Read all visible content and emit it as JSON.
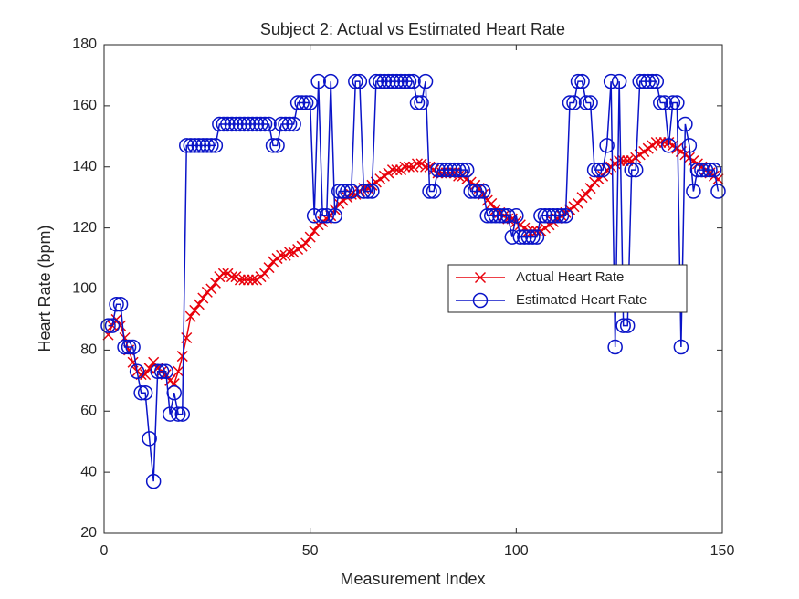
{
  "chart_data": {
    "type": "line",
    "title": "Subject 2: Actual vs Estimated Heart Rate",
    "xlabel": "Measurement Index",
    "ylabel": "Heart Rate (bpm)",
    "x": [
      1,
      2,
      3,
      4,
      5,
      6,
      7,
      8,
      9,
      10,
      11,
      12,
      13,
      14,
      15,
      16,
      17,
      18,
      19,
      20,
      21,
      22,
      23,
      24,
      25,
      26,
      27,
      28,
      29,
      30,
      31,
      32,
      33,
      34,
      35,
      36,
      37,
      38,
      39,
      40,
      41,
      42,
      43,
      44,
      45,
      46,
      47,
      48,
      49,
      50,
      51,
      52,
      53,
      54,
      55,
      56,
      57,
      58,
      59,
      60,
      61,
      62,
      63,
      64,
      65,
      66,
      67,
      68,
      69,
      70,
      71,
      72,
      73,
      74,
      75,
      76,
      77,
      78,
      79,
      80,
      81,
      82,
      83,
      84,
      85,
      86,
      87,
      88,
      89,
      90,
      91,
      92,
      93,
      94,
      95,
      96,
      97,
      98,
      99,
      100,
      101,
      102,
      103,
      104,
      105,
      106,
      107,
      108,
      109,
      110,
      111,
      112,
      113,
      114,
      115,
      116,
      117,
      118,
      119,
      120,
      121,
      122,
      123,
      124,
      125,
      126,
      127,
      128,
      129,
      130,
      131,
      132,
      133,
      134,
      135,
      136,
      137,
      138,
      139,
      140,
      141,
      142,
      143,
      144,
      145,
      146,
      147,
      148,
      149
    ],
    "series": [
      {
        "name": "Actual Heart Rate",
        "color": "#e8000b",
        "marker": "x",
        "values": [
          85,
          88,
          90,
          88,
          84,
          80,
          76,
          73,
          72,
          72,
          74,
          76,
          74,
          73,
          72,
          70,
          69,
          73,
          78,
          84,
          91,
          93,
          95,
          97,
          99,
          100,
          102,
          104,
          105,
          105,
          104,
          104,
          103,
          103,
          103,
          103,
          103,
          104,
          105,
          107,
          109,
          110,
          111,
          111,
          112,
          112,
          113,
          114,
          115,
          117,
          119,
          121,
          122,
          123,
          124,
          126,
          128,
          129,
          130,
          131,
          131,
          132,
          133,
          133,
          134,
          135,
          136,
          137,
          138,
          139,
          139,
          139,
          140,
          140,
          140,
          141,
          141,
          140,
          140,
          139,
          138,
          138,
          138,
          138,
          138,
          137,
          137,
          136,
          135,
          134,
          133,
          131,
          129,
          128,
          126,
          125,
          124,
          123,
          123,
          122,
          121,
          120,
          119,
          119,
          119,
          119,
          120,
          121,
          122,
          123,
          124,
          125,
          126,
          127,
          128,
          130,
          131,
          133,
          135,
          136,
          137,
          139,
          140,
          141,
          142,
          142,
          142,
          142,
          143,
          144,
          145,
          146,
          147,
          148,
          148,
          148,
          148,
          147,
          146,
          145,
          144,
          143,
          142,
          141,
          140,
          139,
          138,
          137,
          136
        ]
      },
      {
        "name": "Estimated Heart Rate",
        "color": "#0a14c8",
        "marker": "o",
        "values": [
          88,
          88,
          95,
          95,
          81,
          81,
          81,
          73,
          66,
          66,
          51,
          37,
          73,
          73,
          73,
          59,
          66,
          59,
          59,
          147,
          147,
          147,
          147,
          147,
          147,
          147,
          147,
          154,
          154,
          154,
          154,
          154,
          154,
          154,
          154,
          154,
          154,
          154,
          154,
          154,
          147,
          147,
          154,
          154,
          154,
          154,
          161,
          161,
          161,
          161,
          124,
          168,
          124,
          124,
          168,
          124,
          132,
          132,
          132,
          132,
          168,
          168,
          132,
          132,
          132,
          168,
          168,
          168,
          168,
          168,
          168,
          168,
          168,
          168,
          168,
          161,
          161,
          168,
          132,
          132,
          139,
          139,
          139,
          139,
          139,
          139,
          139,
          139,
          132,
          132,
          132,
          132,
          124,
          124,
          124,
          124,
          124,
          124,
          117,
          124,
          117,
          117,
          117,
          117,
          117,
          124,
          124,
          124,
          124,
          124,
          124,
          124,
          161,
          161,
          168,
          168,
          161,
          161,
          139,
          139,
          139,
          147,
          168,
          81,
          168,
          88,
          88,
          139,
          139,
          168,
          168,
          168,
          168,
          168,
          161,
          161,
          147,
          161,
          161,
          81,
          154,
          147,
          132,
          139,
          139,
          139,
          139,
          139,
          132
        ]
      }
    ],
    "xlim": [
      0,
      150
    ],
    "xticks": [
      0,
      50,
      100,
      150
    ],
    "ylim": [
      20,
      180
    ],
    "yticks": [
      20,
      40,
      60,
      80,
      100,
      120,
      140,
      160,
      180
    ],
    "grid": false,
    "legend": "east"
  }
}
